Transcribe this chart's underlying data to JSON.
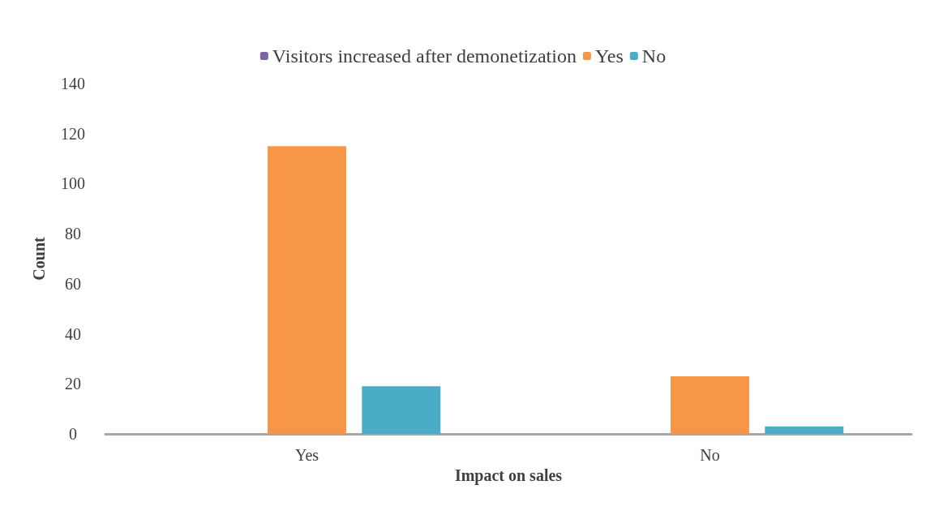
{
  "chart_data": {
    "type": "bar",
    "xlabel": "Impact on sales",
    "ylabel": "Count",
    "categories": [
      "Yes",
      "No"
    ],
    "series": [
      {
        "name": "Visitors increased after demonetization",
        "color": "#8064a2",
        "values": [
          null,
          null
        ]
      },
      {
        "name": "Yes",
        "color": "#f79646",
        "values": [
          115,
          23
        ]
      },
      {
        "name": "No",
        "color": "#4bacc6",
        "values": [
          19,
          3
        ]
      }
    ],
    "ylim": [
      0,
      140
    ],
    "yticks": [
      0,
      20,
      40,
      60,
      80,
      100,
      120,
      140
    ],
    "grid": false,
    "legend": "top"
  }
}
